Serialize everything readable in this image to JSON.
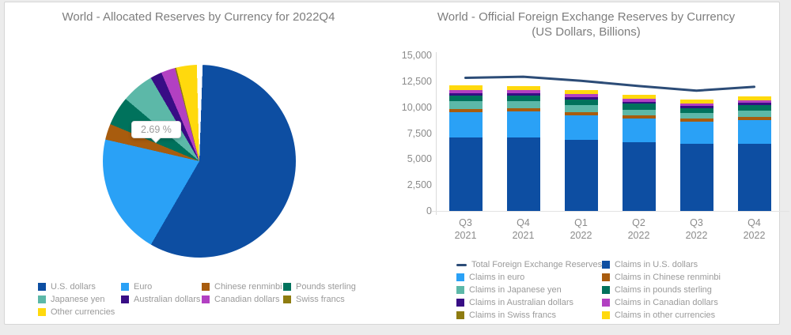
{
  "page": {
    "background": "#ececec",
    "card_background": "#ffffff",
    "title_color": "#7d7d7d",
    "axis_text_color": "#8b8b8b",
    "legend_text_color": "#9a9a9a"
  },
  "chart_data": [
    {
      "type": "pie",
      "title": "World - Allocated Reserves by Currency for 2022Q4",
      "unit": "%",
      "labels": [
        "U.S. dollars",
        "Euro",
        "Chinese renminbi",
        "Pounds sterling",
        "Japanese yen",
        "Australian dollars",
        "Canadian dollars",
        "Swiss francs",
        "Other currencies"
      ],
      "values": [
        58.36,
        20.47,
        2.69,
        4.92,
        5.51,
        1.96,
        2.38,
        0.23,
        3.48
      ],
      "colors": [
        "#0d4ea2",
        "#2aa1f6",
        "#a85c0e",
        "#00725c",
        "#5cb8a8",
        "#380d85",
        "#b240c2",
        "#8e7c10",
        "#ffd90d"
      ],
      "legend_position": "bottom",
      "tooltip": {
        "text": "2.69 %",
        "slice": "Chinese renminbi"
      }
    },
    {
      "type": "bar",
      "subtype": "stacked-with-line",
      "title": "World - Official Foreign Exchange Reserves by Currency (US Dollars, Billions)",
      "title_line1": "World - Official Foreign Exchange Reserves by Currency",
      "title_line2": "(US Dollars, Billions)",
      "categories": [
        {
          "quarter": "Q3",
          "year": "2021"
        },
        {
          "quarter": "Q4",
          "year": "2021"
        },
        {
          "quarter": "Q1",
          "year": "2022"
        },
        {
          "quarter": "Q2",
          "year": "2022"
        },
        {
          "quarter": "Q3",
          "year": "2022"
        },
        {
          "quarter": "Q4",
          "year": "2022"
        }
      ],
      "series": [
        {
          "name": "Claims in U.S. dollars",
          "color": "#0d4ea2",
          "values": [
            7081,
            7087,
            6878,
            6652,
            6441,
            6471
          ]
        },
        {
          "name": "Claims in euro",
          "color": "#2aa1f6",
          "values": [
            2452,
            2486,
            2340,
            2234,
            2147,
            2271
          ]
        },
        {
          "name": "Claims in Chinese renminbi",
          "color": "#a85c0e",
          "values": [
            319,
            337,
            336,
            322,
            298,
            298
          ]
        },
        {
          "name": "Claims in Japanese yen",
          "color": "#5cb8a8",
          "values": [
            716,
            666,
            647,
            582,
            550,
            610
          ]
        },
        {
          "name": "Claims in pounds sterling",
          "color": "#00725c",
          "values": [
            572,
            571,
            578,
            539,
            490,
            545
          ]
        },
        {
          "name": "Claims in Australian dollars",
          "color": "#380d85",
          "values": [
            216,
            216,
            213,
            213,
            200,
            217
          ]
        },
        {
          "name": "Claims in Canadian dollars",
          "color": "#b240c2",
          "values": [
            290,
            288,
            283,
            276,
            244,
            264
          ]
        },
        {
          "name": "Claims in Swiss francs",
          "color": "#8e7c10",
          "values": [
            20,
            20,
            23,
            25,
            25,
            25
          ]
        },
        {
          "name": "Claims in other currencies",
          "color": "#ffd90d",
          "values": [
            441,
            400,
            381,
            340,
            330,
            382
          ]
        }
      ],
      "line_series": {
        "name": "Total Foreign Exchange Reserves",
        "color": "#2c4c77",
        "values": [
          12830,
          12937,
          12550,
          12036,
          11598,
          11959
        ]
      },
      "ylim": [
        0,
        15000
      ],
      "y_ticks": [
        {
          "value": 0,
          "label": "0"
        },
        {
          "value": 2500,
          "label": "2,500"
        },
        {
          "value": 5000,
          "label": "5,000"
        },
        {
          "value": 7500,
          "label": "7,500"
        },
        {
          "value": 10000,
          "label": "10,000"
        },
        {
          "value": 12500,
          "label": "12,500"
        },
        {
          "value": 15000,
          "label": "15,000"
        }
      ],
      "grid": false,
      "legend_position": "bottom"
    }
  ]
}
